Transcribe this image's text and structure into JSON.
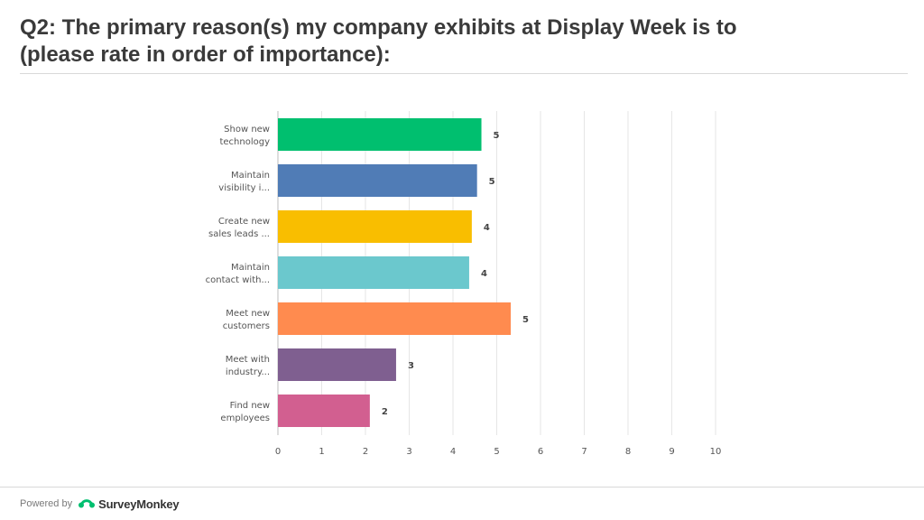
{
  "slide": {
    "title_line1": "Q2: The primary reason(s) my company exhibits at Display Week is to",
    "title_line2": "(please rate in order of importance):"
  },
  "footer": {
    "powered_by": "Powered by",
    "brand": "SurveyMonkey"
  },
  "chart_data": {
    "type": "bar",
    "orientation": "horizontal",
    "title": "",
    "xlabel": "",
    "ylabel": "",
    "xlim": [
      0,
      10
    ],
    "ticks": [
      "0",
      "1",
      "2",
      "3",
      "4",
      "5",
      "6",
      "7",
      "8",
      "9",
      "10"
    ],
    "grid": true,
    "legend": "none",
    "categories": [
      [
        "Show new",
        "technology"
      ],
      [
        "Maintain",
        "visibility i..."
      ],
      [
        "Create new",
        "sales leads ..."
      ],
      [
        "Maintain",
        "contact with..."
      ],
      [
        "Meet new",
        "customers"
      ],
      [
        "Meet with",
        "industry..."
      ],
      [
        "Find new",
        "employees"
      ]
    ],
    "values": [
      4.65,
      4.55,
      4.43,
      4.37,
      5.32,
      2.7,
      2.1
    ],
    "data_labels": [
      "5",
      "5",
      "4",
      "4",
      "5",
      "3",
      "2"
    ],
    "colors": [
      "#00bf6f",
      "#507cb6",
      "#f9be00",
      "#6bc8cd",
      "#ff8b4f",
      "#7f5f90",
      "#d25f90"
    ]
  }
}
